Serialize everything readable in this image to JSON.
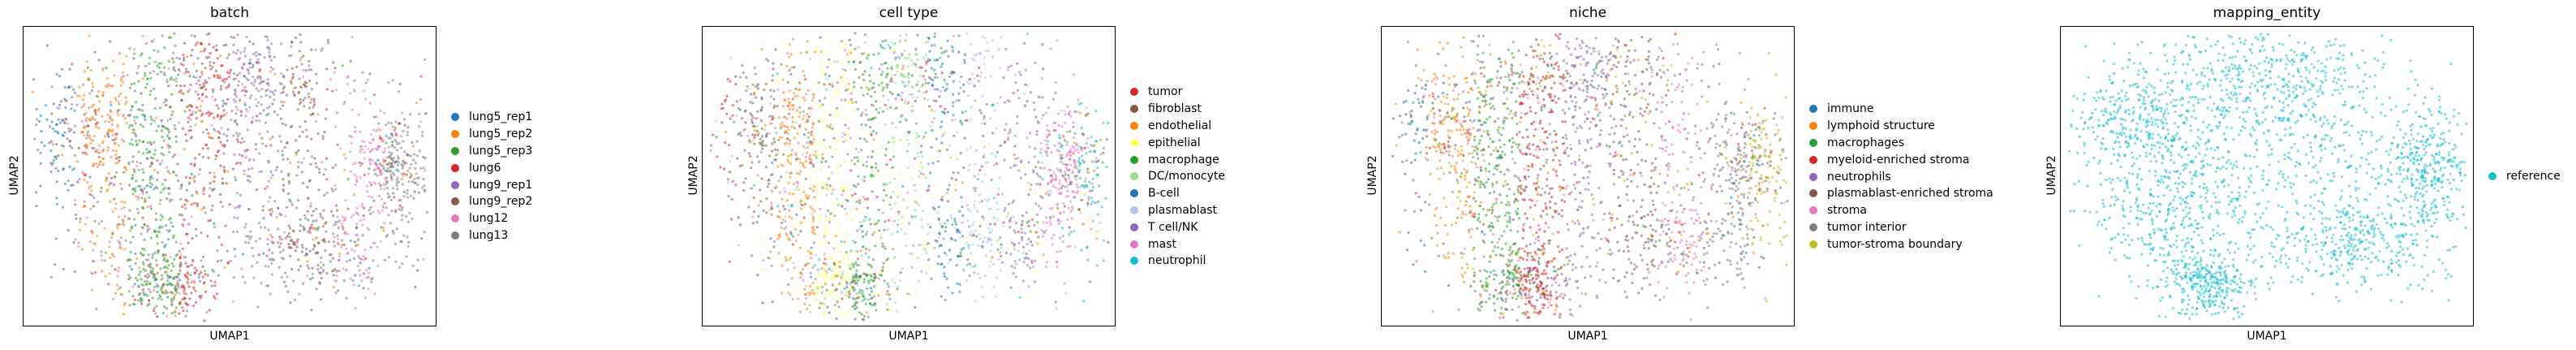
{
  "chart_data": [
    {
      "type": "scatter",
      "title": "batch",
      "xlabel": "UMAP1",
      "ylabel": "UMAP2",
      "grid": false,
      "legend_placement": "right",
      "series": [
        {
          "name": "lung5_rep1",
          "color": "#1f77b4"
        },
        {
          "name": "lung5_rep2",
          "color": "#ff7f0e"
        },
        {
          "name": "lung5_rep3",
          "color": "#2ca02c"
        },
        {
          "name": "lung6",
          "color": "#d62728"
        },
        {
          "name": "lung9_rep1",
          "color": "#9467bd"
        },
        {
          "name": "lung9_rep2",
          "color": "#8c564b"
        },
        {
          "name": "lung12",
          "color": "#e377c2"
        },
        {
          "name": "lung13",
          "color": "#7f7f7f"
        }
      ]
    },
    {
      "type": "scatter",
      "title": "cell type",
      "xlabel": "UMAP1",
      "ylabel": "UMAP2",
      "grid": false,
      "legend_placement": "right",
      "series": [
        {
          "name": "tumor",
          "color": "#d62728"
        },
        {
          "name": "fibroblast",
          "color": "#8c564b"
        },
        {
          "name": "endothelial",
          "color": "#ff7f0e"
        },
        {
          "name": "epithelial",
          "color": "#ffff66"
        },
        {
          "name": "macrophage",
          "color": "#2ca02c"
        },
        {
          "name": "DC/monocyte",
          "color": "#98df8a"
        },
        {
          "name": "B-cell",
          "color": "#1f77b4"
        },
        {
          "name": "plasmablast",
          "color": "#aec7e8"
        },
        {
          "name": "T cell/NK",
          "color": "#9467bd"
        },
        {
          "name": "mast",
          "color": "#e377c2"
        },
        {
          "name": "neutrophil",
          "color": "#17becf"
        }
      ]
    },
    {
      "type": "scatter",
      "title": "niche",
      "xlabel": "UMAP1",
      "ylabel": "UMAP2",
      "grid": false,
      "legend_placement": "right",
      "series": [
        {
          "name": "immune",
          "color": "#1f77b4"
        },
        {
          "name": "lymphoid structure",
          "color": "#ff7f0e"
        },
        {
          "name": "macrophages",
          "color": "#2ca02c"
        },
        {
          "name": "myeloid-enriched stroma",
          "color": "#d62728"
        },
        {
          "name": "neutrophils",
          "color": "#9467bd"
        },
        {
          "name": "plasmablast-enriched stroma",
          "color": "#8c564b"
        },
        {
          "name": "stroma",
          "color": "#e377c2"
        },
        {
          "name": "tumor interior",
          "color": "#7f7f7f"
        },
        {
          "name": "tumor-stroma boundary",
          "color": "#bcbd22"
        }
      ]
    },
    {
      "type": "scatter",
      "title": "mapping_entity",
      "xlabel": "UMAP1",
      "ylabel": "UMAP2",
      "grid": false,
      "legend_placement": "right",
      "series": [
        {
          "name": "reference",
          "color": "#17becf"
        }
      ]
    }
  ]
}
